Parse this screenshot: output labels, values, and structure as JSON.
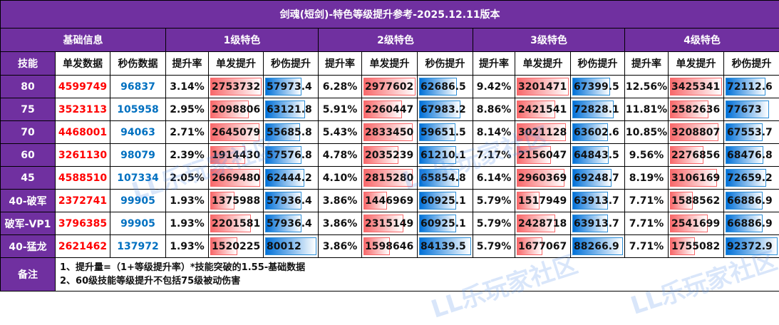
{
  "title": "剑魂(短剑)-特色等级提升参考-2025.12.11版本",
  "groups": [
    "基础信息",
    "1级特色",
    "2级特色",
    "3级特色",
    "4级特色"
  ],
  "headers": {
    "skill": "技能",
    "base": [
      "单发数据",
      "秒伤数据"
    ],
    "level": [
      "提升率",
      "单发提升",
      "秒伤提升"
    ]
  },
  "colors": {
    "header_bg": "#7030a0",
    "single_text": "#ff0000",
    "dps_text": "#0070c0",
    "bar_red": "#f8696b",
    "bar_blue": "#0070d8"
  },
  "rows": [
    {
      "skill": "80",
      "single": "4599749",
      "dps": "96837",
      "levels": [
        {
          "rate": "3.14%",
          "single": "2753732",
          "dps": "57973.4"
        },
        {
          "rate": "6.28%",
          "single": "2977602",
          "dps": "62686.5"
        },
        {
          "rate": "9.42%",
          "single": "3201471",
          "dps": "67399.5"
        },
        {
          "rate": "12.56%",
          "single": "3425341",
          "dps": "72112.6"
        }
      ]
    },
    {
      "skill": "75",
      "single": "3523113",
      "dps": "105958",
      "levels": [
        {
          "rate": "2.95%",
          "single": "2098806",
          "dps": "63121.8"
        },
        {
          "rate": "5.91%",
          "single": "2260447",
          "dps": "67983.2"
        },
        {
          "rate": "8.86%",
          "single": "2421541",
          "dps": "72828.1"
        },
        {
          "rate": "11.81%",
          "single": "2582636",
          "dps": "77673"
        }
      ]
    },
    {
      "skill": "70",
      "single": "4468001",
      "dps": "94063",
      "levels": [
        {
          "rate": "2.71%",
          "single": "2645079",
          "dps": "55685.8"
        },
        {
          "rate": "5.43%",
          "single": "2833450",
          "dps": "59651.5"
        },
        {
          "rate": "8.14%",
          "single": "3021128",
          "dps": "63602.6"
        },
        {
          "rate": "10.85%",
          "single": "3208807",
          "dps": "67553.7"
        }
      ]
    },
    {
      "skill": "60",
      "single": "3261130",
      "dps": "98079",
      "levels": [
        {
          "rate": "2.39%",
          "single": "1914430",
          "dps": "57576.8"
        },
        {
          "rate": "4.78%",
          "single": "2035239",
          "dps": "61210.1"
        },
        {
          "rate": "7.17%",
          "single": "2156047",
          "dps": "64843.5"
        },
        {
          "rate": "9.56%",
          "single": "2276856",
          "dps": "68476.8"
        }
      ]
    },
    {
      "skill": "45",
      "single": "4588510",
      "dps": "107334",
      "levels": [
        {
          "rate": "2.05%",
          "single": "2669480",
          "dps": "62444.2"
        },
        {
          "rate": "4.10%",
          "single": "2815280",
          "dps": "65854.8"
        },
        {
          "rate": "6.14%",
          "single": "2960369",
          "dps": "69248.7"
        },
        {
          "rate": "8.19%",
          "single": "3106169",
          "dps": "72659.2"
        }
      ]
    },
    {
      "skill": "40-破军",
      "single": "2372741",
      "dps": "99905",
      "levels": [
        {
          "rate": "1.93%",
          "single": "1375988",
          "dps": "57936.4"
        },
        {
          "rate": "3.86%",
          "single": "1446969",
          "dps": "60925.1"
        },
        {
          "rate": "5.79%",
          "single": "1517949",
          "dps": "63913.7"
        },
        {
          "rate": "7.71%",
          "single": "1588562",
          "dps": "66886.9"
        }
      ]
    },
    {
      "skill": "破军-VP1",
      "single": "3796385",
      "dps": "99905",
      "levels": [
        {
          "rate": "1.93%",
          "single": "2201581",
          "dps": "57936.4"
        },
        {
          "rate": "3.86%",
          "single": "2315149",
          "dps": "60925.1"
        },
        {
          "rate": "5.79%",
          "single": "2428718",
          "dps": "63913.7"
        },
        {
          "rate": "7.71%",
          "single": "2541699",
          "dps": "66886.9"
        }
      ]
    },
    {
      "skill": "40-猛龙",
      "single": "2621462",
      "dps": "137972",
      "levels": [
        {
          "rate": "1.93%",
          "single": "1520225",
          "dps": "80012"
        },
        {
          "rate": "3.86%",
          "single": "1598646",
          "dps": "84139.5"
        },
        {
          "rate": "5.79%",
          "single": "1677067",
          "dps": "88266.9"
        },
        {
          "rate": "7.71%",
          "single": "1755082",
          "dps": "92372.9"
        }
      ]
    }
  ],
  "notes": {
    "label": "备注",
    "lines": [
      "1、提升量=（1+等级提升率）*技能突破的1.55-基础数据",
      "2、60级技能等级提升不包括75级被动伤害"
    ]
  },
  "watermark": "LL乐玩家社区"
}
